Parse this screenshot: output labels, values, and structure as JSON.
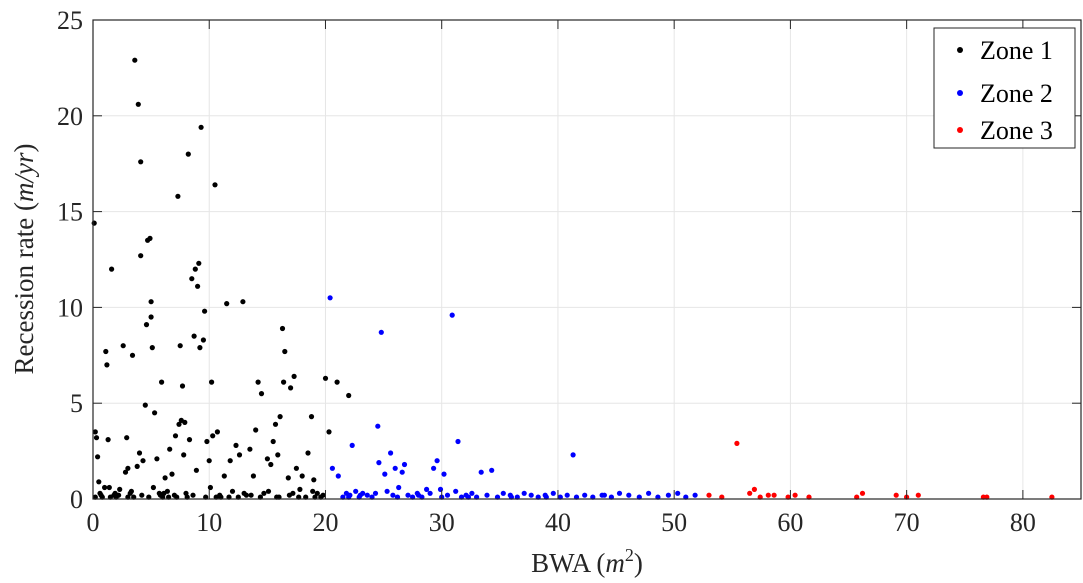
{
  "chart_data": {
    "type": "scatter",
    "xlabel": "BWA (m²)",
    "xlabel_text": "BWA",
    "xlabel_math": "m",
    "xlabel_sup": "2",
    "ylabel": "Recession rate (m/yr)",
    "ylabel_text": "Recession rate",
    "ylabel_math": "m/yr",
    "xlim": [
      0,
      85
    ],
    "ylim": [
      0,
      25
    ],
    "xticks": [
      "0",
      "10",
      "20",
      "30",
      "40",
      "50",
      "60",
      "70",
      "80"
    ],
    "yticks": [
      "0",
      "5",
      "10",
      "15",
      "20",
      "25"
    ],
    "grid": true,
    "legend_position": "top-right",
    "series": [
      {
        "name": "Zone 1",
        "color": "#000000",
        "points": [
          [
            0.1,
            14.4
          ],
          [
            0.2,
            3.5
          ],
          [
            0.3,
            3.2
          ],
          [
            0.4,
            2.2
          ],
          [
            0.5,
            0.9
          ],
          [
            0.6,
            0.3
          ],
          [
            0.8,
            0.1
          ],
          [
            1.0,
            0.6
          ],
          [
            1.1,
            7.7
          ],
          [
            1.2,
            7.0
          ],
          [
            1.3,
            3.1
          ],
          [
            1.4,
            0.6
          ],
          [
            1.6,
            12.0
          ],
          [
            1.8,
            0.2
          ],
          [
            2.0,
            0.1
          ],
          [
            2.3,
            0.5
          ],
          [
            2.6,
            8.0
          ],
          [
            2.8,
            1.4
          ],
          [
            2.9,
            3.2
          ],
          [
            3.0,
            1.6
          ],
          [
            3.2,
            0.3
          ],
          [
            3.4,
            7.5
          ],
          [
            3.5,
            0.1
          ],
          [
            3.6,
            22.9
          ],
          [
            3.8,
            1.7
          ],
          [
            3.9,
            20.6
          ],
          [
            4.0,
            2.4
          ],
          [
            4.1,
            17.6
          ],
          [
            4.1,
            12.7
          ],
          [
            4.2,
            0.2
          ],
          [
            4.3,
            2.0
          ],
          [
            4.5,
            4.9
          ],
          [
            4.6,
            9.1
          ],
          [
            4.7,
            13.5
          ],
          [
            4.9,
            13.6
          ],
          [
            5.0,
            9.5
          ],
          [
            5.0,
            10.3
          ],
          [
            5.1,
            7.9
          ],
          [
            5.2,
            0.6
          ],
          [
            5.3,
            4.5
          ],
          [
            5.5,
            2.1
          ],
          [
            5.7,
            0.3
          ],
          [
            5.9,
            6.1
          ],
          [
            6.0,
            0.1
          ],
          [
            6.2,
            1.1
          ],
          [
            6.4,
            0.4
          ],
          [
            6.6,
            2.6
          ],
          [
            6.8,
            1.3
          ],
          [
            7.0,
            0.2
          ],
          [
            7.1,
            3.3
          ],
          [
            7.3,
            15.8
          ],
          [
            7.4,
            3.9
          ],
          [
            7.5,
            8.0
          ],
          [
            7.6,
            4.1
          ],
          [
            7.7,
            5.9
          ],
          [
            7.8,
            2.3
          ],
          [
            7.9,
            4.0
          ],
          [
            8.0,
            0.3
          ],
          [
            8.2,
            18.0
          ],
          [
            8.3,
            3.1
          ],
          [
            8.5,
            11.5
          ],
          [
            8.7,
            8.5
          ],
          [
            8.8,
            12.0
          ],
          [
            8.9,
            1.5
          ],
          [
            9.0,
            11.1
          ],
          [
            9.1,
            12.3
          ],
          [
            9.2,
            7.9
          ],
          [
            9.3,
            19.4
          ],
          [
            9.5,
            8.3
          ],
          [
            9.6,
            9.8
          ],
          [
            9.8,
            3.0
          ],
          [
            10.0,
            2.0
          ],
          [
            10.1,
            0.6
          ],
          [
            10.2,
            6.1
          ],
          [
            10.3,
            3.3
          ],
          [
            10.5,
            16.4
          ],
          [
            10.7,
            3.5
          ],
          [
            11.0,
            0.1
          ],
          [
            11.3,
            1.2
          ],
          [
            11.5,
            10.2
          ],
          [
            11.8,
            2.0
          ],
          [
            12.0,
            0.4
          ],
          [
            12.3,
            2.8
          ],
          [
            12.6,
            2.3
          ],
          [
            12.9,
            10.3
          ],
          [
            13.2,
            0.2
          ],
          [
            13.5,
            2.6
          ],
          [
            13.8,
            1.2
          ],
          [
            14.0,
            3.6
          ],
          [
            14.2,
            6.1
          ],
          [
            14.5,
            5.5
          ],
          [
            14.7,
            0.3
          ],
          [
            15.0,
            2.1
          ],
          [
            15.3,
            1.8
          ],
          [
            15.5,
            3.0
          ],
          [
            15.7,
            3.9
          ],
          [
            15.9,
            2.3
          ],
          [
            16.1,
            4.3
          ],
          [
            16.3,
            8.9
          ],
          [
            16.4,
            6.1
          ],
          [
            16.5,
            7.7
          ],
          [
            16.8,
            1.1
          ],
          [
            17.0,
            5.8
          ],
          [
            17.3,
            6.4
          ],
          [
            17.5,
            1.6
          ],
          [
            17.8,
            0.5
          ],
          [
            18.0,
            1.2
          ],
          [
            18.3,
            0.1
          ],
          [
            18.5,
            2.4
          ],
          [
            18.8,
            4.3
          ],
          [
            19.0,
            1.0
          ],
          [
            19.3,
            0.3
          ],
          [
            19.6,
            0.1
          ],
          [
            19.8,
            0.2
          ],
          [
            20.0,
            6.3
          ],
          [
            20.3,
            3.5
          ],
          [
            21.0,
            6.1
          ],
          [
            22.0,
            5.4
          ],
          [
            0.7,
            0.2
          ],
          [
            1.5,
            0.1
          ],
          [
            2.2,
            0.2
          ],
          [
            3.0,
            0.1
          ],
          [
            4.8,
            0.1
          ],
          [
            5.8,
            0.2
          ],
          [
            6.5,
            0.1
          ],
          [
            7.2,
            0.1
          ],
          [
            8.6,
            0.2
          ],
          [
            9.7,
            0.1
          ],
          [
            10.9,
            0.2
          ],
          [
            11.7,
            0.1
          ],
          [
            12.5,
            0.1
          ],
          [
            13.6,
            0.2
          ],
          [
            14.4,
            0.1
          ],
          [
            15.1,
            0.4
          ],
          [
            16.0,
            0.1
          ],
          [
            16.9,
            0.2
          ],
          [
            17.7,
            0.1
          ],
          [
            18.9,
            0.4
          ],
          [
            0.2,
            0.1
          ],
          [
            1.9,
            0.3
          ],
          [
            3.3,
            0.4
          ],
          [
            6.1,
            0.3
          ],
          [
            8.1,
            0.1
          ],
          [
            10.6,
            0.1
          ],
          [
            13.0,
            0.3
          ],
          [
            15.8,
            0.1
          ],
          [
            17.2,
            0.3
          ],
          [
            19.1,
            0.1
          ]
        ]
      },
      {
        "name": "Zone 2",
        "color": "#0000ff",
        "points": [
          [
            20.4,
            10.5
          ],
          [
            20.6,
            1.6
          ],
          [
            21.1,
            1.2
          ],
          [
            21.5,
            0.1
          ],
          [
            21.8,
            0.3
          ],
          [
            22.1,
            0.2
          ],
          [
            22.3,
            2.8
          ],
          [
            22.6,
            0.4
          ],
          [
            22.9,
            0.1
          ],
          [
            23.2,
            0.3
          ],
          [
            23.6,
            0.2
          ],
          [
            24.0,
            0.1
          ],
          [
            24.3,
            0.3
          ],
          [
            24.5,
            3.8
          ],
          [
            24.6,
            1.9
          ],
          [
            24.8,
            8.7
          ],
          [
            25.1,
            1.3
          ],
          [
            25.3,
            0.4
          ],
          [
            25.6,
            2.4
          ],
          [
            25.8,
            0.2
          ],
          [
            26.0,
            1.6
          ],
          [
            26.3,
            0.6
          ],
          [
            26.6,
            1.4
          ],
          [
            26.8,
            1.8
          ],
          [
            27.1,
            0.2
          ],
          [
            27.5,
            0.1
          ],
          [
            27.9,
            0.3
          ],
          [
            28.3,
            0.1
          ],
          [
            28.7,
            0.5
          ],
          [
            29.0,
            0.3
          ],
          [
            29.3,
            1.6
          ],
          [
            29.6,
            2.0
          ],
          [
            29.9,
            0.5
          ],
          [
            30.2,
            1.3
          ],
          [
            30.5,
            0.2
          ],
          [
            30.9,
            9.6
          ],
          [
            31.2,
            0.4
          ],
          [
            31.4,
            3.0
          ],
          [
            31.7,
            0.1
          ],
          [
            32.1,
            0.2
          ],
          [
            32.6,
            0.3
          ],
          [
            33.0,
            0.1
          ],
          [
            33.4,
            1.4
          ],
          [
            33.9,
            0.2
          ],
          [
            34.3,
            1.5
          ],
          [
            34.8,
            0.1
          ],
          [
            35.3,
            0.3
          ],
          [
            35.9,
            0.2
          ],
          [
            36.5,
            0.1
          ],
          [
            37.1,
            0.3
          ],
          [
            37.7,
            0.2
          ],
          [
            38.3,
            0.1
          ],
          [
            38.9,
            0.2
          ],
          [
            39.6,
            0.3
          ],
          [
            40.2,
            0.1
          ],
          [
            40.8,
            0.2
          ],
          [
            41.3,
            2.3
          ],
          [
            41.6,
            0.1
          ],
          [
            42.3,
            0.2
          ],
          [
            43.0,
            0.1
          ],
          [
            43.8,
            0.2
          ],
          [
            44.6,
            0.1
          ],
          [
            45.3,
            0.3
          ],
          [
            46.1,
            0.2
          ],
          [
            47.0,
            0.1
          ],
          [
            47.8,
            0.3
          ],
          [
            48.6,
            0.1
          ],
          [
            49.5,
            0.2
          ],
          [
            50.3,
            0.3
          ],
          [
            51.0,
            0.1
          ],
          [
            51.8,
            0.2
          ],
          [
            22.0,
            0.1
          ],
          [
            23.0,
            0.2
          ],
          [
            26.2,
            0.1
          ],
          [
            28.0,
            0.2
          ],
          [
            30.0,
            0.1
          ],
          [
            32.3,
            0.1
          ],
          [
            36.0,
            0.1
          ],
          [
            39.0,
            0.1
          ],
          [
            44.0,
            0.2
          ]
        ]
      },
      {
        "name": "Zone 3",
        "color": "#ff0000",
        "points": [
          [
            53.0,
            0.2
          ],
          [
            54.1,
            0.1
          ],
          [
            55.4,
            2.9
          ],
          [
            56.5,
            0.3
          ],
          [
            56.9,
            0.5
          ],
          [
            57.4,
            0.1
          ],
          [
            58.1,
            0.2
          ],
          [
            58.6,
            0.2
          ],
          [
            59.8,
            0.1
          ],
          [
            60.4,
            0.2
          ],
          [
            61.6,
            0.1
          ],
          [
            65.7,
            0.1
          ],
          [
            66.2,
            0.3
          ],
          [
            69.1,
            0.2
          ],
          [
            70.0,
            0.1
          ],
          [
            71.0,
            0.2
          ],
          [
            76.6,
            0.1
          ],
          [
            76.9,
            0.1
          ],
          [
            82.5,
            0.1
          ]
        ]
      }
    ]
  }
}
